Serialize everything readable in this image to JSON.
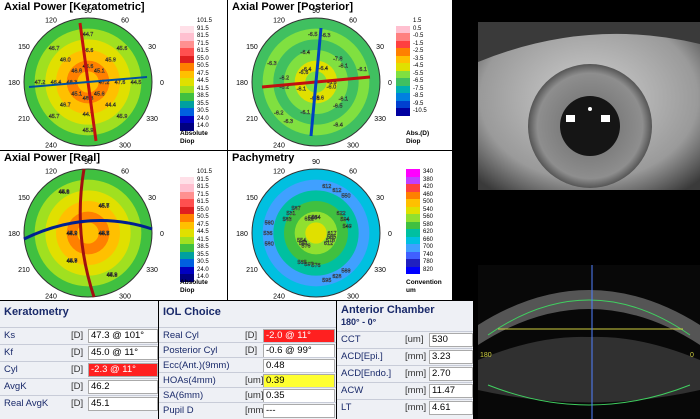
{
  "maps": {
    "keratometric": {
      "title": "Axial Power [Keratometric]",
      "scale": [
        "101.5",
        "91.5",
        "81.5",
        "71.5",
        "61.5",
        "55.0",
        "50.5",
        "47.5",
        "44.5",
        "41.5",
        "38.5",
        "35.5",
        "30.5",
        "24.0",
        "14.0"
      ],
      "unit": "Absolute\nDiop",
      "degrees": [
        "90",
        "60",
        "120",
        "30",
        "150",
        "180",
        "0",
        "210",
        "330",
        "240",
        "300",
        "270"
      ],
      "values": [
        "47.2",
        "45.9",
        "44.7",
        "46.8",
        "46.4",
        "45.7",
        "48.8",
        "44.4",
        "44.5",
        "45.1",
        "46.6",
        "46.7",
        "48.3",
        "46.7",
        "45.9",
        "45.6",
        "47.6",
        "45.6",
        "46.6",
        "48.0",
        "47.2",
        "45.1",
        "44.7",
        "45.9"
      ]
    },
    "posterior": {
      "title": "Axial Power [Posterior]",
      "scale": [
        "1.5",
        "0.5",
        "-0.5",
        "-1.5",
        "-2.5",
        "-3.5",
        "-4.5",
        "-5.5",
        "-6.5",
        "-7.5",
        "-8.5",
        "-9.5",
        "-10.5"
      ],
      "unit": "Abs.(D)\nDiop",
      "degrees": [
        "90",
        "60",
        "120",
        "30",
        "150",
        "180",
        "0",
        "210",
        "330",
        "240",
        "300",
        "270"
      ],
      "values": [
        "-6.6",
        "-7.8",
        "-6.5",
        "-6.6",
        "-6.2",
        "-6.3",
        "-6.6",
        "-6.1",
        "-6.1",
        "-6.4",
        "-6.4",
        "-6.3",
        "-6.1",
        "-6.1",
        "-6.4",
        "-6.0",
        "-6.1",
        "-6.3",
        "-6.4",
        "-6.2",
        "-6.2",
        "-6.3",
        "-6.5"
      ]
    },
    "real": {
      "title": "Axial Power [Real]",
      "scale": [
        "101.5",
        "91.5",
        "81.5",
        "71.5",
        "61.5",
        "55.0",
        "50.5",
        "47.5",
        "44.5",
        "41.5",
        "38.5",
        "35.5",
        "30.5",
        "24.0",
        "14.0"
      ],
      "unit": "Absolute\nDiop",
      "degrees": [
        "90",
        "60",
        "120",
        "30",
        "150",
        "180",
        "0",
        "210",
        "330",
        "240",
        "300",
        "270"
      ],
      "values": [
        "46.7",
        "45.5",
        "45.1",
        "44.9",
        "45.7",
        "44.9",
        "45.2",
        "45.7",
        "44.8",
        "45.2",
        "44.9",
        "44.6",
        "44.6",
        "45.7",
        "44.0",
        "45.9",
        "44.6",
        "45.2"
      ]
    },
    "pachymetry": {
      "title": "Pachymetry",
      "scale": [
        "340",
        "380",
        "420",
        "460",
        "500",
        "540",
        "560",
        "580",
        "620",
        "660",
        "700",
        "740",
        "780",
        "820"
      ],
      "unit": "Convention\num",
      "degrees": [
        "90",
        "60",
        "120",
        "30",
        "150",
        "180",
        "0",
        "210",
        "330",
        "240",
        "300",
        "270"
      ],
      "values": [
        "617",
        "622",
        "612",
        "612",
        "583",
        "580",
        "576",
        "576",
        "569",
        "585",
        "594",
        "612",
        "548",
        "531",
        "536",
        "551",
        "597",
        "628",
        "578",
        "549",
        "550",
        "564",
        "587",
        "560",
        "554",
        "565",
        "595",
        "612"
      ]
    }
  },
  "colors": {
    "hot": [
      "#ffffff",
      "#ffe0e8",
      "#ffc0d0",
      "#ff9090",
      "#ff5050",
      "#e02020",
      "#ff8000",
      "#ffc000",
      "#e0e000",
      "#a0e020",
      "#40c040",
      "#00a0a0",
      "#0060e0",
      "#0000c0",
      "#000080"
    ],
    "posterior": [
      "#ffffff",
      "#ffc0d0",
      "#ff8080",
      "#ff4040",
      "#ff8000",
      "#ffc000",
      "#e0e000",
      "#80e040",
      "#40c060",
      "#00b0b0",
      "#0080e0",
      "#0040d0",
      "#0000a0"
    ],
    "pachy": [
      "#ff00ff",
      "#c040ff",
      "#ff4040",
      "#ff8000",
      "#ffc000",
      "#e0e000",
      "#90e030",
      "#40c040",
      "#00c0a0",
      "#00c0e0",
      "#40a0ff",
      "#4060ff",
      "#2020c0",
      "#0000ff"
    ]
  },
  "keratometry": {
    "title": "Keratometry",
    "rows": [
      {
        "label": "Ks",
        "unit": "[D]",
        "value": "47.3 @ 101°"
      },
      {
        "label": "Kf",
        "unit": "[D]",
        "value": "45.0 @ 11°"
      },
      {
        "label": "Cyl",
        "unit": "[D]",
        "value": "-2.3 @ 11°"
      },
      {
        "label": "AvgK",
        "unit": "[D]",
        "value": "46.2"
      },
      {
        "label": "Real AvgK",
        "unit": "[D]",
        "value": "45.1"
      }
    ]
  },
  "iol": {
    "title": "IOL Choice",
    "rows": [
      {
        "label": "Real Cyl",
        "unit": "[D]",
        "value": "-2.0 @ 11°"
      },
      {
        "label": "Posterior Cyl",
        "unit": "[D]",
        "value": "-0.6 @ 99°"
      },
      {
        "label": "Ecc(Ant.)(9mm)",
        "unit": "",
        "value": "0.48"
      },
      {
        "label": "HOAs(4mm)",
        "unit": "[um]",
        "value": "0.39"
      },
      {
        "label": "SA(6mm)",
        "unit": "[um]",
        "value": "0.35"
      },
      {
        "label": "Pupil D",
        "unit": "[mm]",
        "value": "---"
      }
    ]
  },
  "anterior": {
    "title": "Anterior Chamber",
    "subtitle": "180° - 0°",
    "rows": [
      {
        "label": "CCT",
        "unit": "[um]",
        "value": "530"
      },
      {
        "label": "ACD[Epi.]",
        "unit": "[mm]",
        "value": "3.23"
      },
      {
        "label": "ACD[Endo.]",
        "unit": "[mm]",
        "value": "2.70"
      },
      {
        "label": "ACW",
        "unit": "[mm]",
        "value": "11.47"
      },
      {
        "label": "LT",
        "unit": "[mm]",
        "value": "4.61"
      }
    ]
  },
  "oct": {
    "left": "180",
    "right": "0"
  }
}
